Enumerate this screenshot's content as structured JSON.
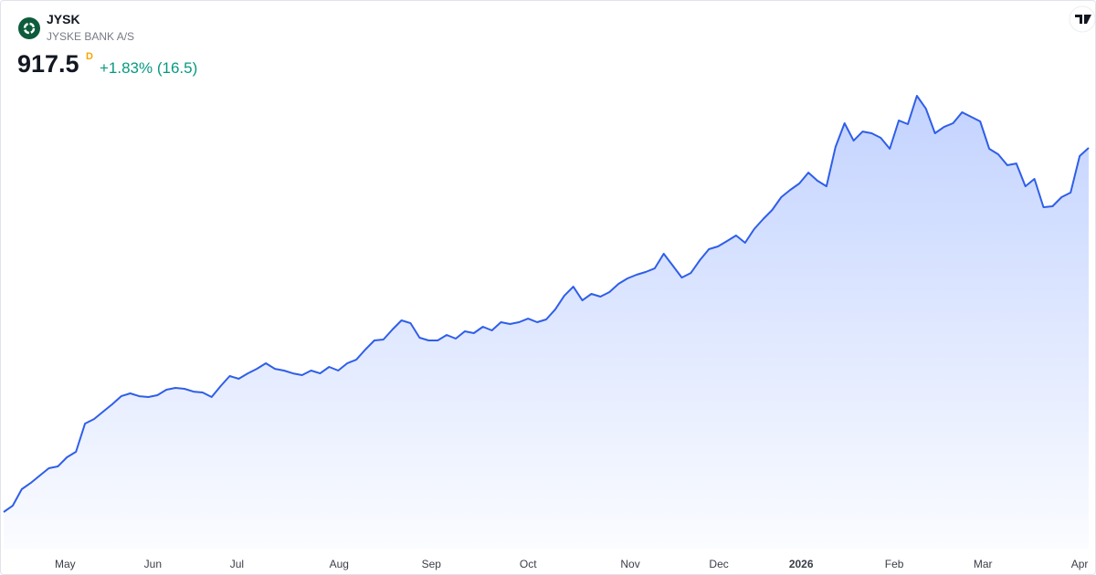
{
  "header": {
    "symbol": "JYSK",
    "name": "JYSKE BANK A/S",
    "price": "917.5",
    "price_flag": "D",
    "change": "+1.83% (16.5)"
  },
  "chart_data": {
    "type": "area",
    "color": "#2f5ee8",
    "values": [
      446.7,
      454.9,
      476.2,
      484.4,
      493.9,
      503.3,
      505.7,
      517.5,
      524.6,
      561.1,
      567.0,
      576.5,
      585.9,
      596.5,
      600.1,
      596.5,
      595.4,
      597.7,
      604.8,
      607.2,
      606.0,
      602.4,
      601.3,
      595.4,
      609.5,
      622.5,
      619.0,
      626.0,
      631.9,
      639.0,
      631.9,
      629.6,
      626.0,
      623.7,
      629.6,
      626.0,
      634.3,
      629.6,
      639.0,
      643.7,
      656.7,
      668.5,
      669.7,
      682.7,
      694.5,
      690.9,
      672.1,
      668.5,
      668.5,
      675.6,
      670.9,
      680.3,
      678.0,
      686.2,
      681.5,
      692.1,
      689.8,
      692.1,
      696.8,
      692.1,
      695.7,
      708.6,
      726.3,
      738.1,
      720.4,
      728.7,
      725.2,
      731.1,
      741.7,
      748.8,
      753.5,
      757.0,
      761.7,
      780.6,
      765.3,
      749.9,
      755.8,
      772.4,
      786.5,
      790.1,
      797.1,
      804.2,
      794.8,
      812.5,
      825.5,
      837.3,
      853.8,
      863.2,
      871.5,
      885.6,
      875.0,
      867.9,
      918.7,
      949.4,
      926.9,
      938.7,
      936.4,
      930.5,
      916.3,
      952.9,
      948.2,
      984.8,
      968.2,
      936.4,
      944.6,
      949.4,
      963.5,
      957.6,
      951.7,
      916.3,
      909.2,
      895.1,
      897.4,
      867.9,
      877.4,
      840.8,
      842.0,
      853.8,
      859.7,
      906.9,
      917.5
    ],
    "xlim": [
      0,
      120
    ],
    "ylim": [
      399.5,
      1107.5
    ],
    "xticks": [
      {
        "value": 6.8,
        "label": "May"
      },
      {
        "value": 16.5,
        "label": "Jun"
      },
      {
        "value": 25.8,
        "label": "Jul"
      },
      {
        "value": 37.1,
        "label": "Aug"
      },
      {
        "value": 47.3,
        "label": "Sep"
      },
      {
        "value": 58,
        "label": "Oct"
      },
      {
        "value": 69.3,
        "label": "Nov"
      },
      {
        "value": 79.1,
        "label": "Dec"
      },
      {
        "value": 88.2,
        "label": "2026"
      },
      {
        "value": 98.5,
        "label": "Feb"
      },
      {
        "value": 108.3,
        "label": "Mar"
      },
      {
        "value": 119,
        "label": "Apr"
      }
    ]
  }
}
